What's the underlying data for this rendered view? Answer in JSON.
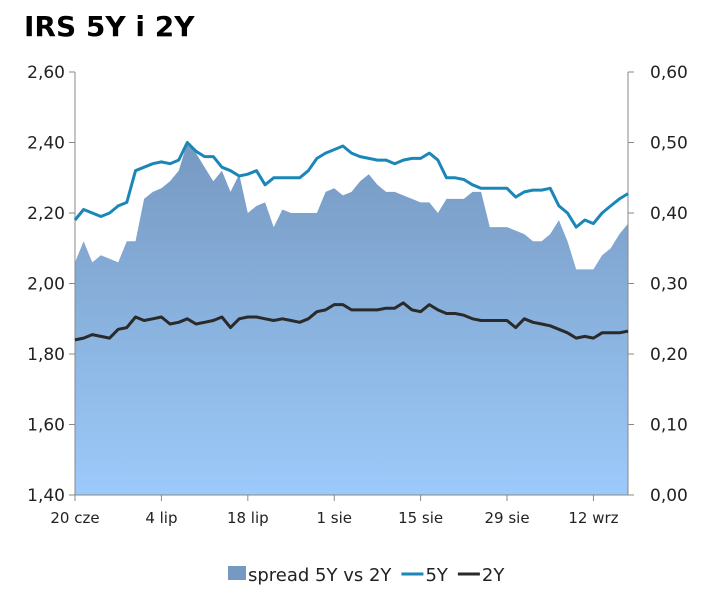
{
  "chart_data": {
    "type": "line",
    "title": "IRS 5Y i 2Y",
    "x_tick_labels": [
      "20 cze",
      "4 lip",
      "18 lip",
      "1 sie",
      "15 sie",
      "29 sie",
      "12 wrz"
    ],
    "left_axis": {
      "ylim": [
        1.4,
        2.6
      ],
      "ticks": [
        "1,40",
        "1,60",
        "1,80",
        "2,00",
        "2,20",
        "2,40",
        "2,60"
      ]
    },
    "right_axis": {
      "ylim": [
        0.0,
        0.6
      ],
      "ticks": [
        "0,00",
        "0,10",
        "0,20",
        "0,30",
        "0,40",
        "0,50",
        "0,60"
      ]
    },
    "x_range": [
      0,
      64
    ],
    "x_tick_positions": [
      0,
      10,
      20,
      30,
      40,
      50,
      60
    ],
    "grid": false,
    "legend_position": "bottom",
    "series": [
      {
        "name": "spread 5Y vs 2Y",
        "kind": "area",
        "axis": "right",
        "color": "#7699c1",
        "color_bottom": "#9ccafa",
        "x": [
          0,
          1,
          2,
          3,
          4,
          5,
          6,
          7,
          8,
          9,
          10,
          11,
          12,
          13,
          14,
          15,
          16,
          17,
          18,
          19,
          20,
          21,
          22,
          23,
          24,
          25,
          26,
          27,
          28,
          29,
          30,
          31,
          32,
          33,
          34,
          35,
          36,
          37,
          38,
          39,
          40,
          41,
          42,
          43,
          44,
          45,
          46,
          47,
          48,
          49,
          50,
          51,
          52,
          53,
          54,
          55,
          56,
          57,
          58,
          59,
          60,
          61,
          62,
          63,
          64
        ],
        "values": [
          0.33,
          0.36,
          0.33,
          0.34,
          0.335,
          0.33,
          0.36,
          0.36,
          0.42,
          0.43,
          0.435,
          0.445,
          0.46,
          0.5,
          0.485,
          0.465,
          0.445,
          0.46,
          0.43,
          0.455,
          0.4,
          0.41,
          0.415,
          0.38,
          0.405,
          0.4,
          0.4,
          0.4,
          0.4,
          0.43,
          0.435,
          0.425,
          0.43,
          0.445,
          0.455,
          0.44,
          0.43,
          0.43,
          0.425,
          0.42,
          0.415,
          0.415,
          0.4,
          0.42,
          0.42,
          0.42,
          0.43,
          0.43,
          0.38,
          0.38,
          0.38,
          0.375,
          0.37,
          0.36,
          0.36,
          0.37,
          0.39,
          0.36,
          0.32,
          0.32,
          0.32,
          0.34,
          0.35,
          0.37,
          0.385
        ]
      },
      {
        "name": "5Y",
        "kind": "line",
        "axis": "left",
        "color": "#1a87b8",
        "x": [
          0,
          1,
          2,
          3,
          4,
          5,
          6,
          7,
          8,
          9,
          10,
          11,
          12,
          13,
          14,
          15,
          16,
          17,
          18,
          19,
          20,
          21,
          22,
          23,
          24,
          25,
          26,
          27,
          28,
          29,
          30,
          31,
          32,
          33,
          34,
          35,
          36,
          37,
          38,
          39,
          40,
          41,
          42,
          43,
          44,
          45,
          46,
          47,
          48,
          49,
          50,
          51,
          52,
          53,
          54,
          55,
          56,
          57,
          58,
          59,
          60,
          61,
          62,
          63,
          64
        ],
        "values": [
          2.18,
          2.21,
          2.2,
          2.19,
          2.2,
          2.22,
          2.23,
          2.32,
          2.33,
          2.34,
          2.345,
          2.34,
          2.35,
          2.4,
          2.375,
          2.36,
          2.36,
          2.33,
          2.32,
          2.305,
          2.31,
          2.32,
          2.28,
          2.3,
          2.3,
          2.3,
          2.3,
          2.32,
          2.355,
          2.37,
          2.38,
          2.39,
          2.37,
          2.36,
          2.355,
          2.35,
          2.35,
          2.34,
          2.35,
          2.355,
          2.355,
          2.37,
          2.35,
          2.3,
          2.3,
          2.295,
          2.28,
          2.27,
          2.27,
          2.27,
          2.27,
          2.245,
          2.26,
          2.265,
          2.265,
          2.27,
          2.22,
          2.2,
          2.16,
          2.18,
          2.17,
          2.2,
          2.22,
          2.24,
          2.255
        ]
      },
      {
        "name": "2Y",
        "kind": "line",
        "axis": "left",
        "color": "#2a2a2a",
        "x": [
          0,
          1,
          2,
          3,
          4,
          5,
          6,
          7,
          8,
          9,
          10,
          11,
          12,
          13,
          14,
          15,
          16,
          17,
          18,
          19,
          20,
          21,
          22,
          23,
          24,
          25,
          26,
          27,
          28,
          29,
          30,
          31,
          32,
          33,
          34,
          35,
          36,
          37,
          38,
          39,
          40,
          41,
          42,
          43,
          44,
          45,
          46,
          47,
          48,
          49,
          50,
          51,
          52,
          53,
          54,
          55,
          56,
          57,
          58,
          59,
          60,
          61,
          62,
          63,
          64
        ],
        "values": [
          1.84,
          1.845,
          1.855,
          1.85,
          1.845,
          1.87,
          1.875,
          1.905,
          1.895,
          1.9,
          1.905,
          1.885,
          1.89,
          1.9,
          1.885,
          1.89,
          1.895,
          1.905,
          1.875,
          1.9,
          1.905,
          1.905,
          1.9,
          1.895,
          1.9,
          1.895,
          1.89,
          1.9,
          1.92,
          1.925,
          1.94,
          1.94,
          1.925,
          1.925,
          1.925,
          1.925,
          1.93,
          1.93,
          1.945,
          1.925,
          1.92,
          1.94,
          1.925,
          1.915,
          1.915,
          1.91,
          1.9,
          1.895,
          1.895,
          1.895,
          1.895,
          1.875,
          1.9,
          1.89,
          1.885,
          1.88,
          1.87,
          1.86,
          1.845,
          1.85,
          1.845,
          1.86,
          1.86,
          1.86,
          1.865
        ]
      }
    ]
  }
}
